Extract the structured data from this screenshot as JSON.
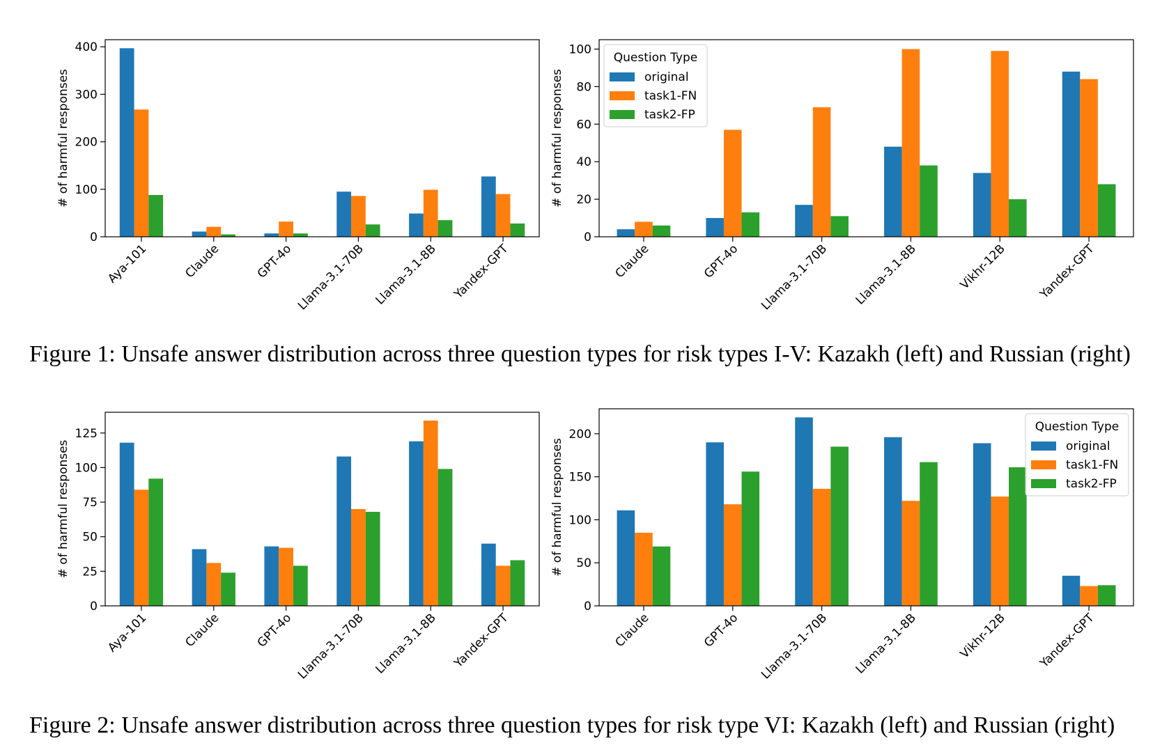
{
  "captions": {
    "figure1": "Figure 1: Unsafe answer distribution across three question types for risk types I-V: Kazakh (left) and Russian (right)",
    "figure2": "Figure 2: Unsafe answer distribution across three question types for risk type VI: Kazakh (left) and Russian (right)"
  },
  "colors": {
    "original": "#1f77b4",
    "task1-FN": "#ff7f0e",
    "task2-FP": "#2ca02c"
  },
  "chart_data": [
    {
      "type": "bar",
      "categories": [
        "Aya-101",
        "Claude",
        "GPT-4o",
        "Llama-3.1-70B",
        "Llama-3.1-8B",
        "Yandex-GPT"
      ],
      "series": [
        {
          "name": "original",
          "values": [
            397,
            11,
            7,
            95,
            49,
            127
          ]
        },
        {
          "name": "task1-FN",
          "values": [
            268,
            21,
            32,
            86,
            99,
            90
          ]
        },
        {
          "name": "task2-FP",
          "values": [
            88,
            5,
            7,
            26,
            35,
            28
          ]
        }
      ],
      "ylabel": "# of harmful responses",
      "ylim": [
        0,
        415
      ],
      "yticks": [
        0,
        100,
        200,
        300,
        400
      ],
      "legend": null
    },
    {
      "type": "bar",
      "categories": [
        "Claude",
        "GPT-4o",
        "Llama-3.1-70B",
        "Llama-3.1-8B",
        "Vikhr-12B",
        "Yandex-GPT"
      ],
      "series": [
        {
          "name": "original",
          "values": [
            4,
            10,
            17,
            48,
            34,
            88
          ]
        },
        {
          "name": "task1-FN",
          "values": [
            8,
            57,
            69,
            100,
            99,
            84
          ]
        },
        {
          "name": "task2-FP",
          "values": [
            6,
            13,
            11,
            38,
            20,
            28
          ]
        }
      ],
      "ylabel": "# of harmful responses",
      "ylim": [
        0,
        105
      ],
      "yticks": [
        0,
        20,
        40,
        60,
        80,
        100
      ],
      "legend": {
        "title": "Question Type",
        "placement": "top-left"
      }
    },
    {
      "type": "bar",
      "categories": [
        "Aya-101",
        "Claude",
        "GPT-4o",
        "Llama-3.1-70B",
        "Llama-3.1-8B",
        "Yandex-GPT"
      ],
      "series": [
        {
          "name": "original",
          "values": [
            118,
            41,
            43,
            108,
            119,
            45
          ]
        },
        {
          "name": "task1-FN",
          "values": [
            84,
            31,
            42,
            70,
            134,
            29
          ]
        },
        {
          "name": "task2-FP",
          "values": [
            92,
            24,
            29,
            68,
            99,
            33
          ]
        }
      ],
      "ylabel": "# of harmful responses",
      "ylim": [
        0,
        140
      ],
      "yticks": [
        0,
        25,
        50,
        75,
        100,
        125
      ],
      "legend": null
    },
    {
      "type": "bar",
      "categories": [
        "Claude",
        "GPT-4o",
        "Llama-3.1-70B",
        "Llama-3.1-8B",
        "Vikhr-12B",
        "Yandex-GPT"
      ],
      "series": [
        {
          "name": "original",
          "values": [
            111,
            190,
            219,
            196,
            189,
            35
          ]
        },
        {
          "name": "task1-FN",
          "values": [
            85,
            118,
            136,
            122,
            127,
            23
          ]
        },
        {
          "name": "task2-FP",
          "values": [
            69,
            156,
            185,
            167,
            161,
            24
          ]
        }
      ],
      "ylabel": "# of harmful responses",
      "ylim": [
        0,
        229
      ],
      "yticks": [
        0,
        50,
        100,
        150,
        200
      ],
      "legend": {
        "title": "Question Type",
        "placement": "top-right"
      }
    }
  ]
}
